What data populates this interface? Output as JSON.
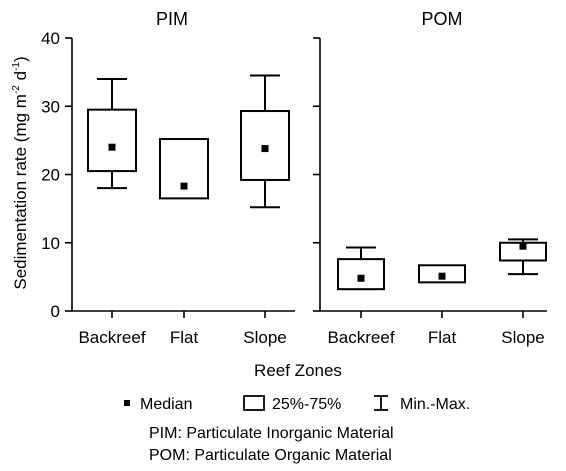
{
  "chart_data": {
    "type": "box",
    "ylabel_main": "Sedimentation rate (mg m",
    "ylabel_sup1": "-2",
    "ylabel_mid": " d",
    "ylabel_sup2": "-1",
    "ylabel_end": ")",
    "xlabel": "Reef Zones",
    "ylim": [
      0,
      40
    ],
    "yticks": [
      "0",
      "10",
      "20",
      "30",
      "40"
    ],
    "ytick_values": [
      0,
      10,
      20,
      30,
      40
    ],
    "panels": [
      {
        "title": "PIM",
        "categories": [
          "Backreef",
          "Flat",
          "Slope"
        ],
        "boxes": [
          {
            "min": 18,
            "q1": 20.5,
            "median": 24,
            "q3": 29.5,
            "max": 34
          },
          {
            "min": null,
            "q1": 16.5,
            "median": 18.3,
            "q3": 25.2,
            "max": null
          },
          {
            "min": 15.2,
            "q1": 19.2,
            "median": 23.8,
            "q3": 29.3,
            "max": 34.5
          }
        ]
      },
      {
        "title": "POM",
        "categories": [
          "Backreef",
          "Flat",
          "Slope"
        ],
        "boxes": [
          {
            "min": 3.2,
            "q1": 3.2,
            "median": 4.8,
            "q3": 7.6,
            "max": 9.3
          },
          {
            "min": null,
            "q1": 4.2,
            "median": 5.1,
            "q3": 6.7,
            "max": null
          },
          {
            "min": 5.4,
            "q1": 7.4,
            "median": 9.5,
            "q3": 10.0,
            "max": 10.5
          }
        ]
      }
    ],
    "legend": {
      "median": "Median",
      "box": "25%-75%",
      "whisker": "Min.-Max."
    },
    "notes": [
      "PIM:  Particulate Inorganic Material",
      "POM: Particulate Organic Material"
    ]
  }
}
